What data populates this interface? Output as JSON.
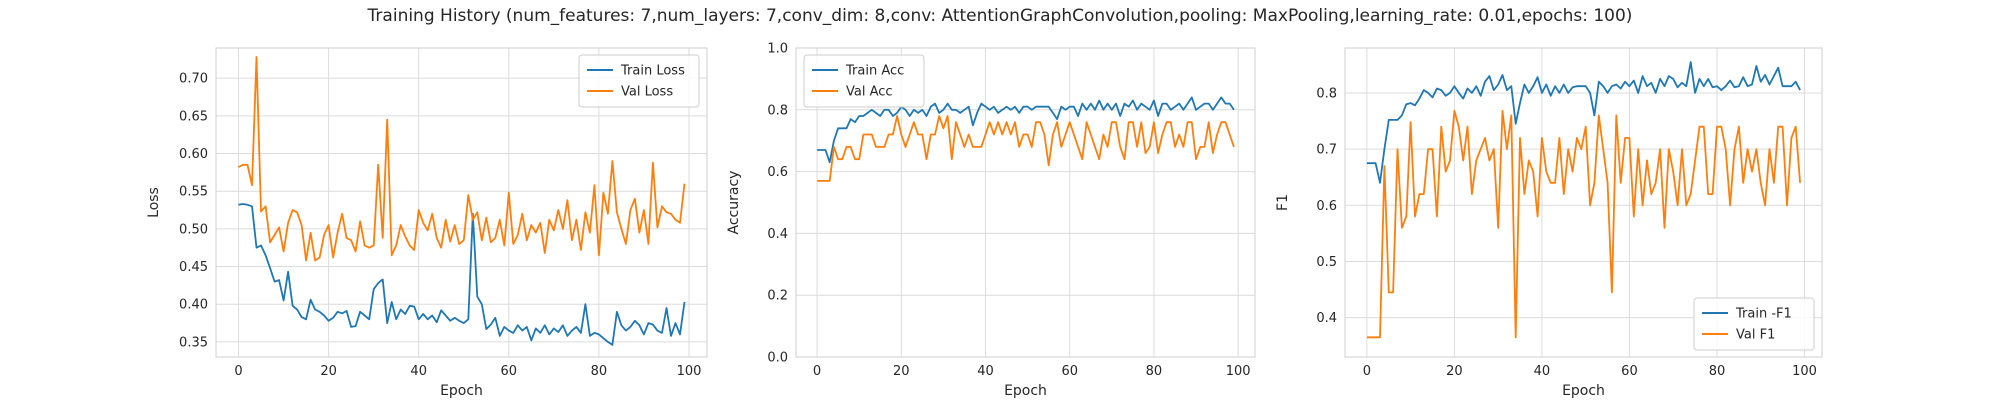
{
  "title": "Training History (num_features: 7,num_layers: 7,conv_dim: 8,conv: AttentionGraphConvolution,pooling: MaxPooling,learning_rate: 0.01,epochs: 100)",
  "colors": {
    "train": "#1f77b4",
    "val": "#ff7f0e",
    "grid": "#dcdcdc",
    "frame": "#cfcfcf",
    "text": "#262626"
  },
  "chart_data": [
    {
      "type": "line",
      "xlabel": "Epoch",
      "ylabel": "Loss",
      "xlim": [
        -5,
        104
      ],
      "ylim": [
        0.33,
        0.74
      ],
      "xticks": [
        0,
        20,
        40,
        60,
        80,
        100
      ],
      "yticks": [
        0.35,
        0.4,
        0.45,
        0.5,
        0.55,
        0.6,
        0.65,
        0.7
      ],
      "tick_format": "2",
      "legend_position": "top-right",
      "x": [
        0,
        1,
        2,
        3,
        4,
        5,
        6,
        7,
        8,
        9,
        10,
        11,
        12,
        13,
        14,
        15,
        16,
        17,
        18,
        19,
        20,
        21,
        22,
        23,
        24,
        25,
        26,
        27,
        28,
        29,
        30,
        31,
        32,
        33,
        34,
        35,
        36,
        37,
        38,
        39,
        40,
        41,
        42,
        43,
        44,
        45,
        46,
        47,
        48,
        49,
        50,
        51,
        52,
        53,
        54,
        55,
        56,
        57,
        58,
        59,
        60,
        61,
        62,
        63,
        64,
        65,
        66,
        67,
        68,
        69,
        70,
        71,
        72,
        73,
        74,
        75,
        76,
        77,
        78,
        79,
        80,
        81,
        82,
        83,
        84,
        85,
        86,
        87,
        88,
        89,
        90,
        91,
        92,
        93,
        94,
        95,
        96,
        97,
        98,
        99
      ],
      "series": [
        {
          "name": "Train Loss",
          "color_key": "train",
          "values": [
            0.532,
            0.533,
            0.532,
            0.53,
            0.475,
            0.478,
            0.465,
            0.448,
            0.43,
            0.432,
            0.405,
            0.443,
            0.398,
            0.393,
            0.383,
            0.38,
            0.406,
            0.393,
            0.39,
            0.385,
            0.378,
            0.382,
            0.39,
            0.388,
            0.391,
            0.37,
            0.371,
            0.39,
            0.385,
            0.38,
            0.42,
            0.428,
            0.433,
            0.375,
            0.403,
            0.38,
            0.393,
            0.387,
            0.398,
            0.397,
            0.38,
            0.387,
            0.38,
            0.385,
            0.376,
            0.392,
            0.385,
            0.378,
            0.382,
            0.378,
            0.375,
            0.38,
            0.52,
            0.41,
            0.4,
            0.367,
            0.373,
            0.382,
            0.358,
            0.37,
            0.365,
            0.362,
            0.372,
            0.365,
            0.37,
            0.352,
            0.368,
            0.362,
            0.372,
            0.36,
            0.368,
            0.363,
            0.372,
            0.358,
            0.365,
            0.37,
            0.362,
            0.4,
            0.358,
            0.362,
            0.36,
            0.355,
            0.35,
            0.346,
            0.39,
            0.372,
            0.365,
            0.37,
            0.378,
            0.372,
            0.36,
            0.375,
            0.373,
            0.365,
            0.362,
            0.395,
            0.358,
            0.375,
            0.36,
            0.403
          ]
        },
        {
          "name": "Val Loss",
          "color_key": "val",
          "values": [
            0.582,
            0.585,
            0.585,
            0.558,
            0.728,
            0.523,
            0.53,
            0.482,
            0.492,
            0.502,
            0.47,
            0.508,
            0.525,
            0.522,
            0.505,
            0.458,
            0.495,
            0.458,
            0.462,
            0.492,
            0.505,
            0.462,
            0.495,
            0.52,
            0.488,
            0.485,
            0.47,
            0.51,
            0.478,
            0.475,
            0.478,
            0.585,
            0.488,
            0.645,
            0.465,
            0.478,
            0.505,
            0.49,
            0.478,
            0.472,
            0.525,
            0.508,
            0.498,
            0.52,
            0.488,
            0.475,
            0.512,
            0.483,
            0.505,
            0.48,
            0.485,
            0.545,
            0.512,
            0.522,
            0.485,
            0.515,
            0.482,
            0.488,
            0.512,
            0.478,
            0.548,
            0.48,
            0.492,
            0.52,
            0.485,
            0.505,
            0.495,
            0.508,
            0.468,
            0.512,
            0.498,
            0.525,
            0.5,
            0.538,
            0.485,
            0.512,
            0.472,
            0.522,
            0.495,
            0.558,
            0.465,
            0.548,
            0.52,
            0.59,
            0.522,
            0.5,
            0.48,
            0.525,
            0.54,
            0.495,
            0.525,
            0.48,
            0.588,
            0.502,
            0.53,
            0.522,
            0.52,
            0.512,
            0.508,
            0.56
          ]
        }
      ]
    },
    {
      "type": "line",
      "xlabel": "Epoch",
      "ylabel": "Accuracy",
      "xlim": [
        -5,
        104
      ],
      "ylim": [
        0.0,
        1.0
      ],
      "xticks": [
        0,
        20,
        40,
        60,
        80,
        100
      ],
      "yticks": [
        0.0,
        0.2,
        0.4,
        0.6,
        0.8,
        1.0
      ],
      "tick_format": "1",
      "legend_position": "top-left",
      "x": [
        0,
        1,
        2,
        3,
        4,
        5,
        6,
        7,
        8,
        9,
        10,
        11,
        12,
        13,
        14,
        15,
        16,
        17,
        18,
        19,
        20,
        21,
        22,
        23,
        24,
        25,
        26,
        27,
        28,
        29,
        30,
        31,
        32,
        33,
        34,
        35,
        36,
        37,
        38,
        39,
        40,
        41,
        42,
        43,
        44,
        45,
        46,
        47,
        48,
        49,
        50,
        51,
        52,
        53,
        54,
        55,
        56,
        57,
        58,
        59,
        60,
        61,
        62,
        63,
        64,
        65,
        66,
        67,
        68,
        69,
        70,
        71,
        72,
        73,
        74,
        75,
        76,
        77,
        78,
        79,
        80,
        81,
        82,
        83,
        84,
        85,
        86,
        87,
        88,
        89,
        90,
        91,
        92,
        93,
        94,
        95,
        96,
        97,
        98,
        99
      ],
      "series": [
        {
          "name": "Train Acc",
          "color_key": "train",
          "values": [
            0.67,
            0.67,
            0.67,
            0.63,
            0.7,
            0.74,
            0.74,
            0.74,
            0.77,
            0.76,
            0.78,
            0.78,
            0.79,
            0.8,
            0.79,
            0.78,
            0.8,
            0.8,
            0.78,
            0.79,
            0.81,
            0.8,
            0.78,
            0.8,
            0.79,
            0.8,
            0.78,
            0.81,
            0.82,
            0.79,
            0.8,
            0.82,
            0.8,
            0.8,
            0.79,
            0.8,
            0.81,
            0.75,
            0.79,
            0.82,
            0.81,
            0.8,
            0.81,
            0.79,
            0.8,
            0.81,
            0.8,
            0.81,
            0.79,
            0.81,
            0.81,
            0.8,
            0.81,
            0.81,
            0.81,
            0.81,
            0.79,
            0.77,
            0.81,
            0.8,
            0.81,
            0.81,
            0.78,
            0.82,
            0.8,
            0.82,
            0.8,
            0.83,
            0.8,
            0.82,
            0.8,
            0.82,
            0.78,
            0.82,
            0.81,
            0.83,
            0.8,
            0.82,
            0.81,
            0.8,
            0.83,
            0.78,
            0.82,
            0.82,
            0.8,
            0.81,
            0.82,
            0.8,
            0.82,
            0.84,
            0.8,
            0.81,
            0.82,
            0.82,
            0.8,
            0.82,
            0.84,
            0.82,
            0.82,
            0.8
          ]
        },
        {
          "name": "Val Acc",
          "color_key": "val",
          "values": [
            0.57,
            0.57,
            0.57,
            0.57,
            0.68,
            0.64,
            0.64,
            0.68,
            0.68,
            0.64,
            0.64,
            0.72,
            0.72,
            0.72,
            0.68,
            0.68,
            0.68,
            0.72,
            0.72,
            0.78,
            0.72,
            0.68,
            0.72,
            0.76,
            0.72,
            0.72,
            0.64,
            0.72,
            0.72,
            0.78,
            0.74,
            0.78,
            0.64,
            0.76,
            0.72,
            0.68,
            0.72,
            0.68,
            0.68,
            0.68,
            0.72,
            0.76,
            0.72,
            0.76,
            0.72,
            0.76,
            0.72,
            0.76,
            0.68,
            0.72,
            0.72,
            0.68,
            0.76,
            0.76,
            0.72,
            0.62,
            0.72,
            0.76,
            0.68,
            0.72,
            0.76,
            0.72,
            0.68,
            0.64,
            0.76,
            0.72,
            0.68,
            0.64,
            0.72,
            0.68,
            0.76,
            0.76,
            0.68,
            0.64,
            0.76,
            0.76,
            0.68,
            0.76,
            0.66,
            0.68,
            0.76,
            0.66,
            0.72,
            0.76,
            0.76,
            0.68,
            0.72,
            0.68,
            0.76,
            0.76,
            0.64,
            0.68,
            0.68,
            0.76,
            0.66,
            0.72,
            0.76,
            0.76,
            0.72,
            0.68
          ]
        }
      ]
    },
    {
      "type": "line",
      "xlabel": "Epoch",
      "ylabel": "F1",
      "xlim": [
        -5,
        104
      ],
      "ylim": [
        0.33,
        0.88
      ],
      "xticks": [
        0,
        20,
        40,
        60,
        80,
        100
      ],
      "yticks": [
        0.4,
        0.5,
        0.6,
        0.7,
        0.8
      ],
      "tick_format": "1",
      "legend_position": "bottom-right",
      "x": [
        0,
        1,
        2,
        3,
        4,
        5,
        6,
        7,
        8,
        9,
        10,
        11,
        12,
        13,
        14,
        15,
        16,
        17,
        18,
        19,
        20,
        21,
        22,
        23,
        24,
        25,
        26,
        27,
        28,
        29,
        30,
        31,
        32,
        33,
        34,
        35,
        36,
        37,
        38,
        39,
        40,
        41,
        42,
        43,
        44,
        45,
        46,
        47,
        48,
        49,
        50,
        51,
        52,
        53,
        54,
        55,
        56,
        57,
        58,
        59,
        60,
        61,
        62,
        63,
        64,
        65,
        66,
        67,
        68,
        69,
        70,
        71,
        72,
        73,
        74,
        75,
        76,
        77,
        78,
        79,
        80,
        81,
        82,
        83,
        84,
        85,
        86,
        87,
        88,
        89,
        90,
        91,
        92,
        93,
        94,
        95,
        96,
        97,
        98,
        99
      ],
      "series": [
        {
          "name": "Train -F1",
          "color_key": "train",
          "values": [
            0.675,
            0.675,
            0.675,
            0.64,
            0.7,
            0.752,
            0.752,
            0.752,
            0.76,
            0.78,
            0.782,
            0.778,
            0.79,
            0.805,
            0.8,
            0.792,
            0.808,
            0.805,
            0.795,
            0.8,
            0.812,
            0.8,
            0.79,
            0.808,
            0.8,
            0.812,
            0.795,
            0.82,
            0.83,
            0.805,
            0.815,
            0.832,
            0.805,
            0.812,
            0.745,
            0.782,
            0.815,
            0.8,
            0.812,
            0.828,
            0.8,
            0.815,
            0.795,
            0.812,
            0.8,
            0.815,
            0.8,
            0.81,
            0.812,
            0.812,
            0.812,
            0.8,
            0.76,
            0.82,
            0.812,
            0.8,
            0.812,
            0.815,
            0.808,
            0.82,
            0.812,
            0.822,
            0.8,
            0.83,
            0.812,
            0.818,
            0.8,
            0.825,
            0.812,
            0.83,
            0.825,
            0.81,
            0.818,
            0.812,
            0.855,
            0.8,
            0.825,
            0.812,
            0.825,
            0.81,
            0.812,
            0.805,
            0.812,
            0.822,
            0.81,
            0.812,
            0.828,
            0.812,
            0.815,
            0.848,
            0.82,
            0.832,
            0.815,
            0.83,
            0.845,
            0.812,
            0.812,
            0.812,
            0.82,
            0.805
          ]
        },
        {
          "name": "Val F1",
          "color_key": "val",
          "values": [
            0.365,
            0.365,
            0.365,
            0.365,
            0.67,
            0.445,
            0.445,
            0.7,
            0.56,
            0.58,
            0.748,
            0.58,
            0.62,
            0.62,
            0.7,
            0.7,
            0.58,
            0.74,
            0.66,
            0.68,
            0.768,
            0.74,
            0.68,
            0.74,
            0.62,
            0.68,
            0.7,
            0.72,
            0.68,
            0.7,
            0.56,
            0.768,
            0.7,
            0.76,
            0.365,
            0.72,
            0.62,
            0.68,
            0.66,
            0.58,
            0.72,
            0.66,
            0.64,
            0.64,
            0.72,
            0.62,
            0.7,
            0.66,
            0.72,
            0.7,
            0.74,
            0.6,
            0.64,
            0.76,
            0.7,
            0.64,
            0.445,
            0.76,
            0.64,
            0.72,
            0.72,
            0.58,
            0.7,
            0.6,
            0.68,
            0.62,
            0.64,
            0.7,
            0.56,
            0.7,
            0.66,
            0.6,
            0.7,
            0.6,
            0.62,
            0.68,
            0.74,
            0.74,
            0.62,
            0.62,
            0.74,
            0.74,
            0.7,
            0.6,
            0.7,
            0.74,
            0.64,
            0.7,
            0.66,
            0.7,
            0.64,
            0.6,
            0.7,
            0.64,
            0.74,
            0.74,
            0.6,
            0.72,
            0.74,
            0.64
          ]
        }
      ]
    }
  ]
}
